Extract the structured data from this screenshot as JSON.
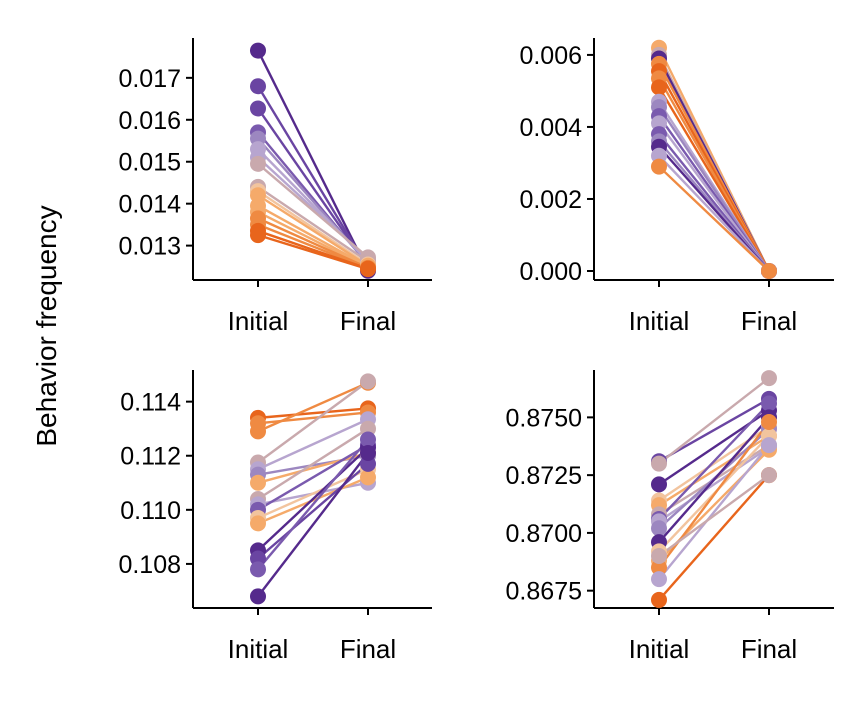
{
  "figure": {
    "ylabel": "Behavior frequency",
    "palette": [
      "#e8651c",
      "#ef8a42",
      "#f5aa6a",
      "#f2c49e",
      "#c9a9ad",
      "#b7a5cf",
      "#9c87c0",
      "#7a5aae",
      "#552a8c"
    ]
  },
  "chart_data": [
    {
      "type": "line",
      "panel": "top-left",
      "categories": [
        "Initial",
        "Final"
      ],
      "y_ticks": [
        "0.013",
        "0.014",
        "0.015",
        "0.016",
        "0.017"
      ],
      "ylim": [
        0.01218,
        0.01795
      ],
      "series": [
        {
          "values": [
            0.01765,
            0.0124
          ],
          "color": "#552a8c"
        },
        {
          "values": [
            0.0168,
            0.01247
          ],
          "color": "#6a45a2"
        },
        {
          "values": [
            0.01627,
            0.0125
          ],
          "color": "#6a45a2"
        },
        {
          "values": [
            0.0157,
            0.01255
          ],
          "color": "#7a5aae"
        },
        {
          "values": [
            0.01555,
            0.01257
          ],
          "color": "#9c87c0"
        },
        {
          "values": [
            0.0153,
            0.01263
          ],
          "color": "#b7a5cf"
        },
        {
          "values": [
            0.0151,
            0.01268
          ],
          "color": "#b7a5cf"
        },
        {
          "values": [
            0.01495,
            0.01272
          ],
          "color": "#c9a9ad"
        },
        {
          "values": [
            0.0144,
            0.01262
          ],
          "color": "#c9a9ad"
        },
        {
          "values": [
            0.0143,
            0.01255
          ],
          "color": "#f2c49e"
        },
        {
          "values": [
            0.0142,
            0.01252
          ],
          "color": "#f5aa6a"
        },
        {
          "values": [
            0.01395,
            0.0125
          ],
          "color": "#f5aa6a"
        },
        {
          "values": [
            0.0138,
            0.01248
          ],
          "color": "#f5aa6a"
        },
        {
          "values": [
            0.01365,
            0.01247
          ],
          "color": "#ef8a42"
        },
        {
          "values": [
            0.0135,
            0.01246
          ],
          "color": "#ef8a42"
        },
        {
          "values": [
            0.01335,
            0.01245
          ],
          "color": "#e8651c"
        },
        {
          "values": [
            0.01325,
            0.01244
          ],
          "color": "#e8651c"
        }
      ]
    },
    {
      "type": "line",
      "panel": "top-right",
      "categories": [
        "Initial",
        "Final"
      ],
      "y_ticks": [
        "0.000",
        "0.002",
        "0.004",
        "0.006"
      ],
      "ylim": [
        -0.00025,
        0.00647
      ],
      "series": [
        {
          "values": [
            0.0062,
            0.0
          ],
          "color": "#f5aa6a"
        },
        {
          "values": [
            0.006,
            0.0
          ],
          "color": "#c9a9ad"
        },
        {
          "values": [
            0.0059,
            0.0
          ],
          "color": "#552a8c"
        },
        {
          "values": [
            0.00575,
            0.0
          ],
          "color": "#ef8a42"
        },
        {
          "values": [
            0.00555,
            0.0
          ],
          "color": "#e8651c"
        },
        {
          "values": [
            0.00535,
            0.0
          ],
          "color": "#ef8a42"
        },
        {
          "values": [
            0.0051,
            0.0
          ],
          "color": "#e8651c"
        },
        {
          "values": [
            0.0047,
            0.0
          ],
          "color": "#b7a5cf"
        },
        {
          "values": [
            0.00455,
            0.0
          ],
          "color": "#9c87c0"
        },
        {
          "values": [
            0.0043,
            0.0
          ],
          "color": "#7a5aae"
        },
        {
          "values": [
            0.0041,
            0.0
          ],
          "color": "#b7a5cf"
        },
        {
          "values": [
            0.0038,
            0.0
          ],
          "color": "#7a5aae"
        },
        {
          "values": [
            0.0036,
            0.0
          ],
          "color": "#9c87c0"
        },
        {
          "values": [
            0.00345,
            0.0
          ],
          "color": "#552a8c"
        },
        {
          "values": [
            0.0032,
            0.0
          ],
          "color": "#b7a5cf"
        },
        {
          "values": [
            0.0029,
            0.0
          ],
          "color": "#ef8a42"
        }
      ]
    },
    {
      "type": "line",
      "panel": "bottom-left",
      "categories": [
        "Initial",
        "Final"
      ],
      "y_ticks": [
        "0.108",
        "0.110",
        "0.112",
        "0.114"
      ],
      "ylim": [
        0.10637,
        0.11517
      ],
      "series": [
        {
          "values": [
            0.1134,
            0.11375
          ],
          "color": "#e8651c"
        },
        {
          "values": [
            0.1132,
            0.1136
          ],
          "color": "#ef8a42"
        },
        {
          "values": [
            0.1129,
            0.1147
          ],
          "color": "#ef8a42"
        },
        {
          "values": [
            0.11175,
            0.11475
          ],
          "color": "#c9a9ad"
        },
        {
          "values": [
            0.1115,
            0.11335
          ],
          "color": "#b7a5cf"
        },
        {
          "values": [
            0.1113,
            0.112
          ],
          "color": "#9c87c0"
        },
        {
          "values": [
            0.111,
            0.1121
          ],
          "color": "#f5aa6a"
        },
        {
          "values": [
            0.1104,
            0.113
          ],
          "color": "#c9a9ad"
        },
        {
          "values": [
            0.1102,
            0.111
          ],
          "color": "#b7a5cf"
        },
        {
          "values": [
            0.11,
            0.1124
          ],
          "color": "#7a5aae"
        },
        {
          "values": [
            0.1097,
            0.1115
          ],
          "color": "#f2c49e"
        },
        {
          "values": [
            0.1095,
            0.1112
          ],
          "color": "#f5aa6a"
        },
        {
          "values": [
            0.1085,
            0.1123
          ],
          "color": "#552a8c"
        },
        {
          "values": [
            0.1082,
            0.1117
          ],
          "color": "#6a45a2"
        },
        {
          "values": [
            0.1078,
            0.1126
          ],
          "color": "#7a5aae"
        },
        {
          "values": [
            0.1068,
            0.1121
          ],
          "color": "#552a8c"
        }
      ]
    },
    {
      "type": "line",
      "panel": "bottom-right",
      "categories": [
        "Initial",
        "Final"
      ],
      "y_ticks": [
        "0.8675",
        "0.8700",
        "0.8725",
        "0.8750"
      ],
      "ylim": [
        0.86675,
        0.87705
      ],
      "series": [
        {
          "values": [
            0.8731,
            0.8758
          ],
          "color": "#6a45a2"
        },
        {
          "values": [
            0.873,
            0.8767
          ],
          "color": "#c9a9ad"
        },
        {
          "values": [
            0.8721,
            0.8753
          ],
          "color": "#552a8c"
        },
        {
          "values": [
            0.8714,
            0.8746
          ],
          "color": "#f2c49e"
        },
        {
          "values": [
            0.8712,
            0.8742
          ],
          "color": "#f5aa6a"
        },
        {
          "values": [
            0.8708,
            0.8738
          ],
          "color": "#c9a9ad"
        },
        {
          "values": [
            0.8706,
            0.8756
          ],
          "color": "#7a5aae"
        },
        {
          "values": [
            0.8705,
            0.8737
          ],
          "color": "#b7a5cf"
        },
        {
          "values": [
            0.8702,
            0.8745
          ],
          "color": "#9c87c0"
        },
        {
          "values": [
            0.8696,
            0.875
          ],
          "color": "#552a8c"
        },
        {
          "values": [
            0.8692,
            0.8742
          ],
          "color": "#f2c49e"
        },
        {
          "values": [
            0.8688,
            0.8736
          ],
          "color": "#f5aa6a"
        },
        {
          "values": [
            0.8685,
            0.8748
          ],
          "color": "#ef8a42"
        },
        {
          "values": [
            0.868,
            0.8738
          ],
          "color": "#b7a5cf"
        },
        {
          "values": [
            0.8671,
            0.8725
          ],
          "color": "#e8651c"
        },
        {
          "values": [
            0.869,
            0.8725
          ],
          "color": "#c9a9ad"
        }
      ]
    }
  ]
}
